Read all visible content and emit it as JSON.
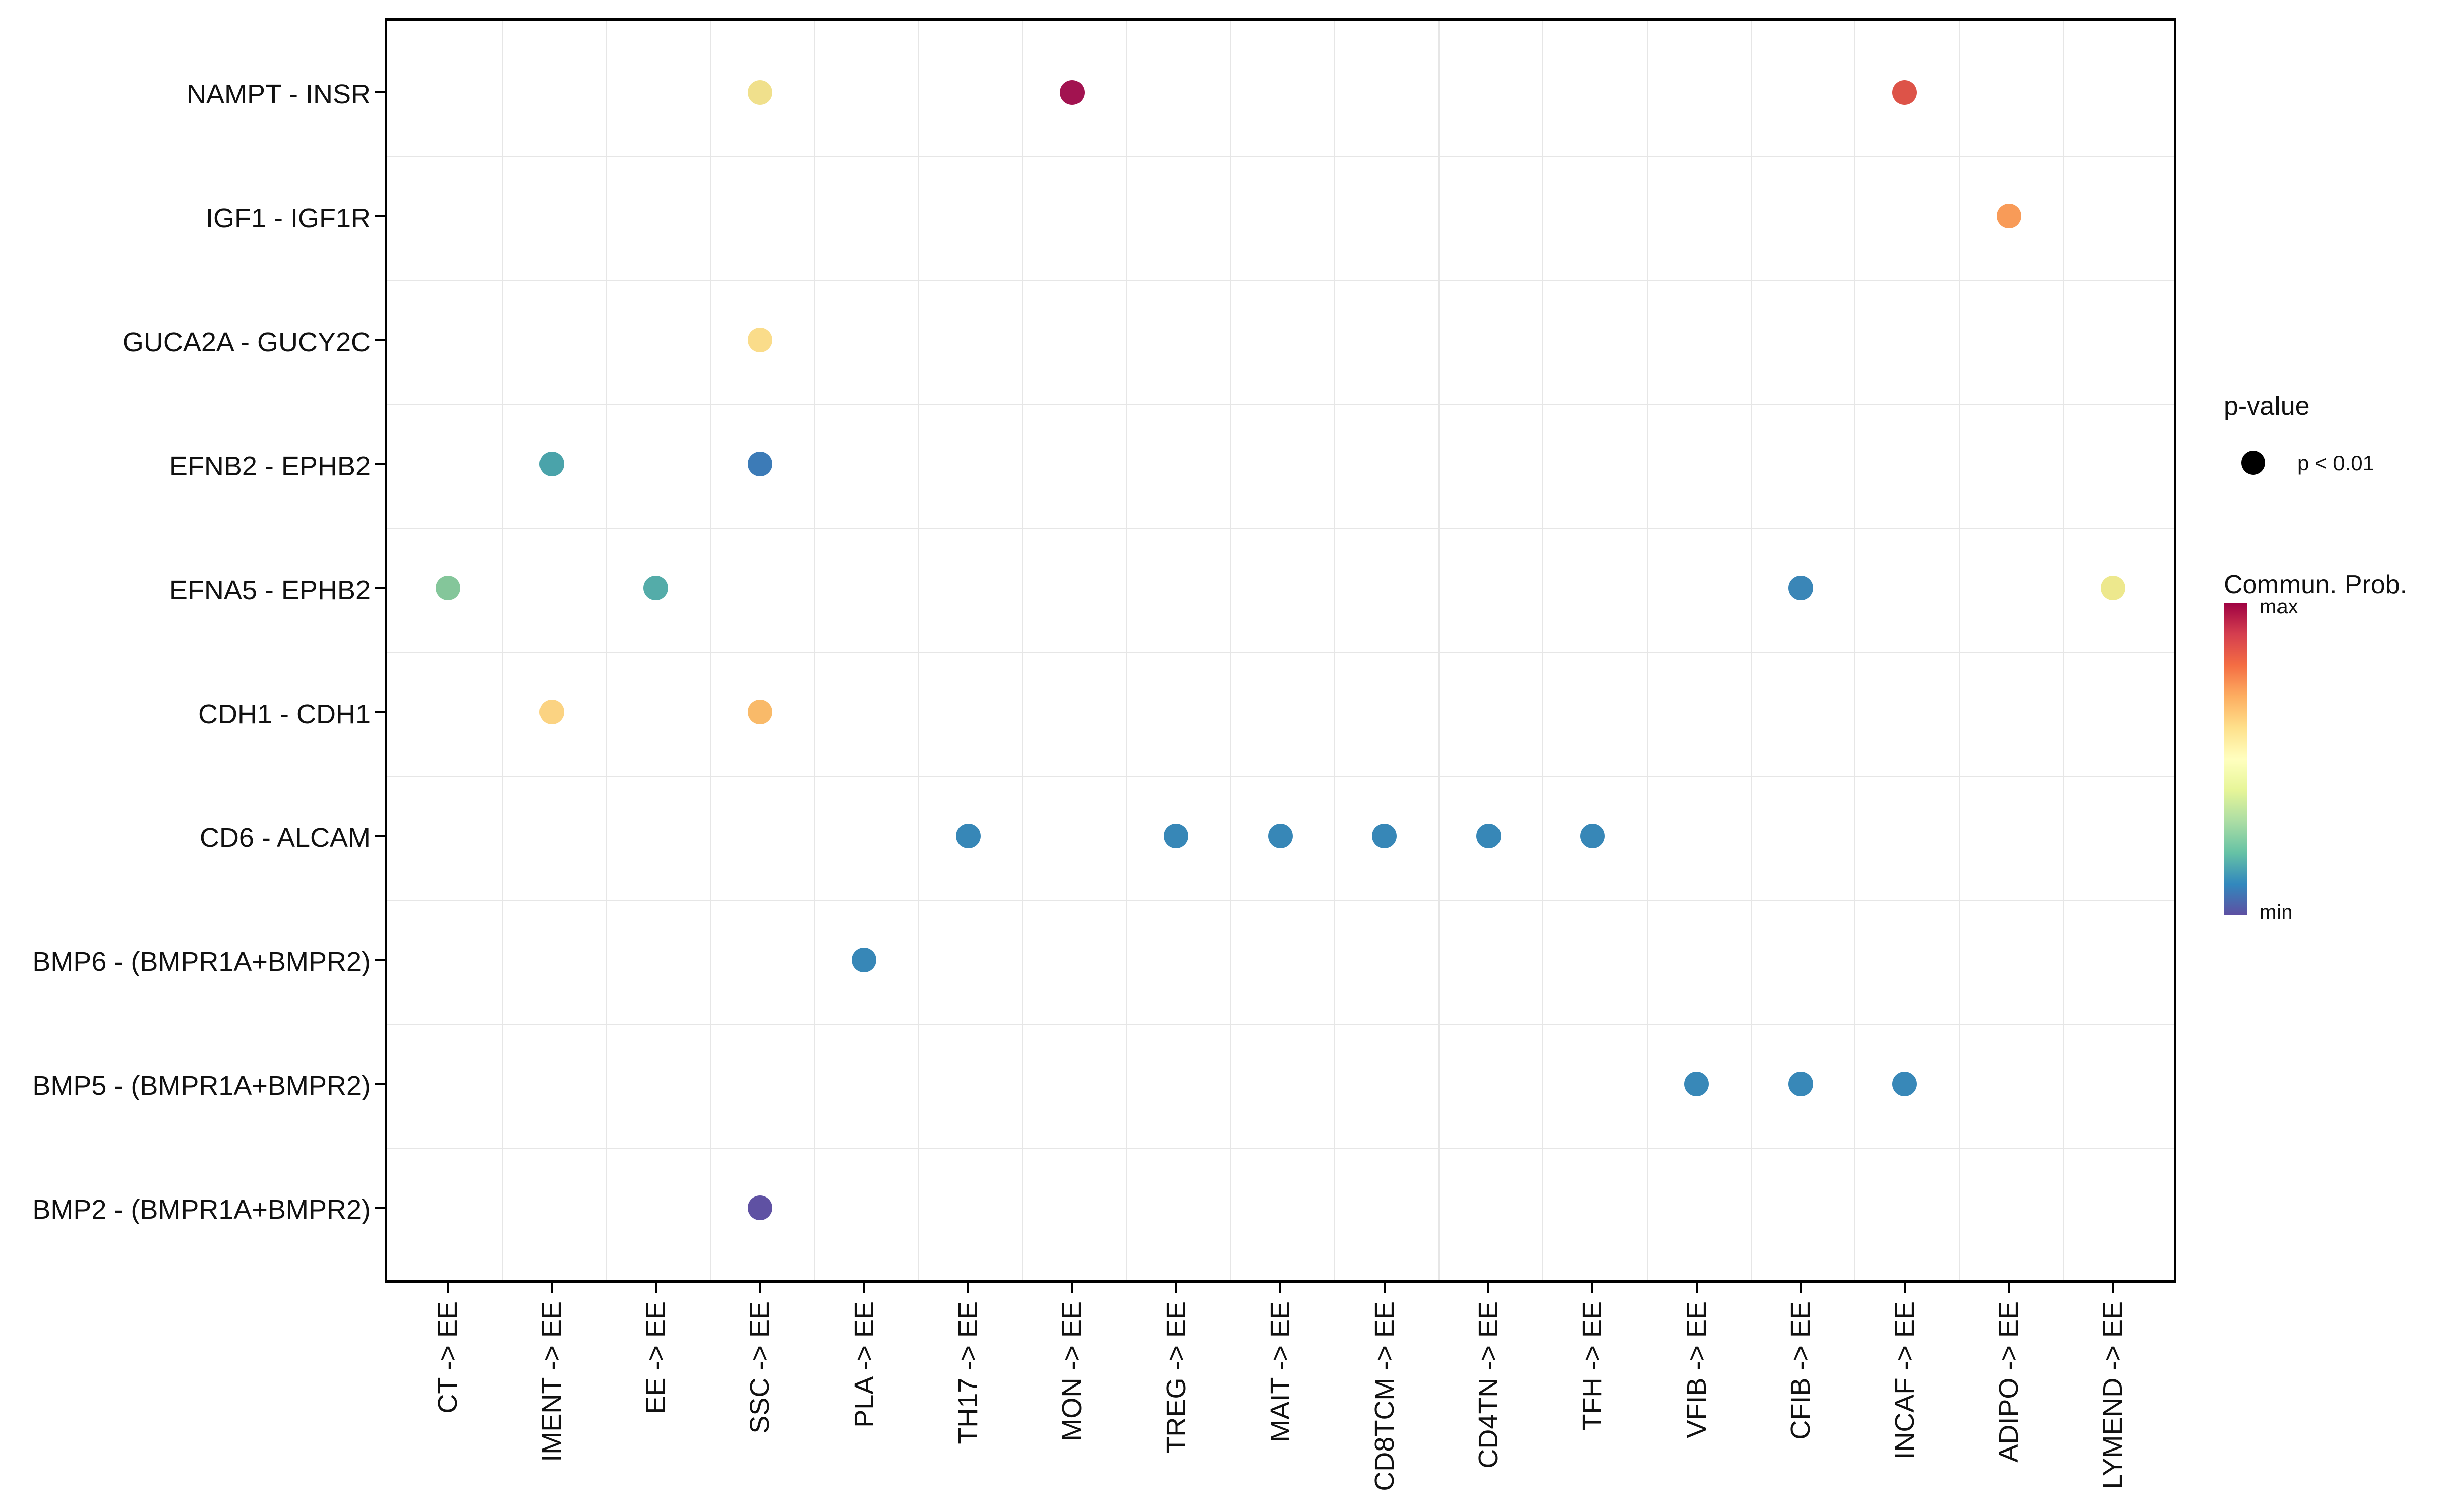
{
  "figure": {
    "background": "#ffffff",
    "frame_color": "#000000",
    "grid_color": "#e6e6e6",
    "text_color": "#111111"
  },
  "chart_data": {
    "type": "scatter",
    "subtype": "bubble-dotplot",
    "title": "",
    "xlabel": "",
    "ylabel": "",
    "grid": "between-category lines only",
    "x_categories": [
      "CT -> EE",
      "IMENT -> EE",
      "EE -> EE",
      "SSC -> EE",
      "PLA -> EE",
      "TH17 -> EE",
      "MON -> EE",
      "TREG -> EE",
      "MAIT -> EE",
      "CD8TCM -> EE",
      "CD4TN -> EE",
      "TFH -> EE",
      "VFIB -> EE",
      "CFIB -> EE",
      "INCAF -> EE",
      "ADIPO -> EE",
      "LYMEND -> EE"
    ],
    "y_categories": [
      "NAMPT - INSR",
      "IGF1 - IGF1R",
      "GUCA2A - GUCY2C",
      "EFNB2 - EPHB2",
      "EFNA5 - EPHB2",
      "CDH1 - CDH1",
      "CD6 - ALCAM",
      "BMP6 - (BMPR1A+BMPR2)",
      "BMP5 - (BMPR1A+BMPR2)",
      "BMP2 - (BMPR1A+BMPR2)"
    ],
    "points": [
      {
        "y": "NAMPT - INSR",
        "x": "SSC -> EE",
        "color": "#F0E08C",
        "commun_prob_norm_est": 0.58,
        "p_value": "p < 0.01"
      },
      {
        "y": "NAMPT - INSR",
        "x": "MON -> EE",
        "color": "#A21350",
        "commun_prob_norm_est": 0.97,
        "p_value": "p < 0.01"
      },
      {
        "y": "NAMPT - INSR",
        "x": "INCAF -> EE",
        "color": "#DD5348",
        "commun_prob_norm_est": 0.85,
        "p_value": "p < 0.01"
      },
      {
        "y": "IGF1 - IGF1R",
        "x": "ADIPO -> EE",
        "color": "#F89B58",
        "commun_prob_norm_est": 0.74,
        "p_value": "p < 0.01"
      },
      {
        "y": "GUCA2A - GUCY2C",
        "x": "SSC -> EE",
        "color": "#FADC8A",
        "commun_prob_norm_est": 0.62,
        "p_value": "p < 0.01"
      },
      {
        "y": "EFNB2 - EPHB2",
        "x": "IMENT -> EE",
        "color": "#4AA3AA",
        "commun_prob_norm_est": 0.27,
        "p_value": "p < 0.01"
      },
      {
        "y": "EFNB2 - EPHB2",
        "x": "SSC -> EE",
        "color": "#3C7BB7",
        "commun_prob_norm_est": 0.15,
        "p_value": "p < 0.01"
      },
      {
        "y": "EFNA5 - EPHB2",
        "x": "CT -> EE",
        "color": "#84C69A",
        "commun_prob_norm_est": 0.35,
        "p_value": "p < 0.01"
      },
      {
        "y": "EFNA5 - EPHB2",
        "x": "EE -> EE",
        "color": "#54ACA9",
        "commun_prob_norm_est": 0.29,
        "p_value": "p < 0.01"
      },
      {
        "y": "EFNA5 - EPHB2",
        "x": "CFIB -> EE",
        "color": "#3A86B7",
        "commun_prob_norm_est": 0.13,
        "p_value": "p < 0.01"
      },
      {
        "y": "EFNA5 - EPHB2",
        "x": "LYMEND -> EE",
        "color": "#EDE88D",
        "commun_prob_norm_est": 0.52,
        "p_value": "p < 0.01"
      },
      {
        "y": "CDH1 - CDH1",
        "x": "IMENT -> EE",
        "color": "#FBD382",
        "commun_prob_norm_est": 0.66,
        "p_value": "p < 0.01"
      },
      {
        "y": "CDH1 - CDH1",
        "x": "SSC -> EE",
        "color": "#F9BA69",
        "commun_prob_norm_est": 0.7,
        "p_value": "p < 0.01"
      },
      {
        "y": "CD6 - ALCAM",
        "x": "TH17 -> EE",
        "color": "#3787B7",
        "commun_prob_norm_est": 0.12,
        "p_value": "p < 0.01"
      },
      {
        "y": "CD6 - ALCAM",
        "x": "TREG -> EE",
        "color": "#3787B7",
        "commun_prob_norm_est": 0.12,
        "p_value": "p < 0.01"
      },
      {
        "y": "CD6 - ALCAM",
        "x": "MAIT -> EE",
        "color": "#3787B7",
        "commun_prob_norm_est": 0.12,
        "p_value": "p < 0.01"
      },
      {
        "y": "CD6 - ALCAM",
        "x": "CD8TCM -> EE",
        "color": "#3787B7",
        "commun_prob_norm_est": 0.12,
        "p_value": "p < 0.01"
      },
      {
        "y": "CD6 - ALCAM",
        "x": "CD4TN -> EE",
        "color": "#3787B7",
        "commun_prob_norm_est": 0.12,
        "p_value": "p < 0.01"
      },
      {
        "y": "CD6 - ALCAM",
        "x": "TFH -> EE",
        "color": "#3787B7",
        "commun_prob_norm_est": 0.12,
        "p_value": "p < 0.01"
      },
      {
        "y": "BMP6 - (BMPR1A+BMPR2)",
        "x": "PLA -> EE",
        "color": "#3787B7",
        "commun_prob_norm_est": 0.12,
        "p_value": "p < 0.01"
      },
      {
        "y": "BMP5 - (BMPR1A+BMPR2)",
        "x": "VFIB -> EE",
        "color": "#3888B8",
        "commun_prob_norm_est": 0.12,
        "p_value": "p < 0.01"
      },
      {
        "y": "BMP5 - (BMPR1A+BMPR2)",
        "x": "CFIB -> EE",
        "color": "#3888B8",
        "commun_prob_norm_est": 0.12,
        "p_value": "p < 0.01"
      },
      {
        "y": "BMP5 - (BMPR1A+BMPR2)",
        "x": "INCAF -> EE",
        "color": "#3888B8",
        "commun_prob_norm_est": 0.12,
        "p_value": "p < 0.01"
      },
      {
        "y": "BMP2 - (BMPR1A+BMPR2)",
        "x": "SSC -> EE",
        "color": "#5F51A3",
        "commun_prob_norm_est": 0.02,
        "p_value": "p < 0.01"
      }
    ],
    "color_scale": {
      "name": "Spectral (reversed, max at top)",
      "max_label": "max",
      "min_label": "min",
      "stops_top_to_bottom": [
        "#9E0142",
        "#D53E4F",
        "#F46D43",
        "#FDAE61",
        "#FEE08B",
        "#FFFFBF",
        "#E6F598",
        "#ABDDA4",
        "#66C2A5",
        "#3288BD",
        "#5E4FA2"
      ]
    },
    "legend_position": "right"
  },
  "legend": {
    "p_value": {
      "title": "p-value",
      "entry_label": "p < 0.01",
      "dot_color": "#000000"
    },
    "commun_prob": {
      "title": "Commun. Prob.",
      "max_label": "max",
      "min_label": "min"
    }
  }
}
